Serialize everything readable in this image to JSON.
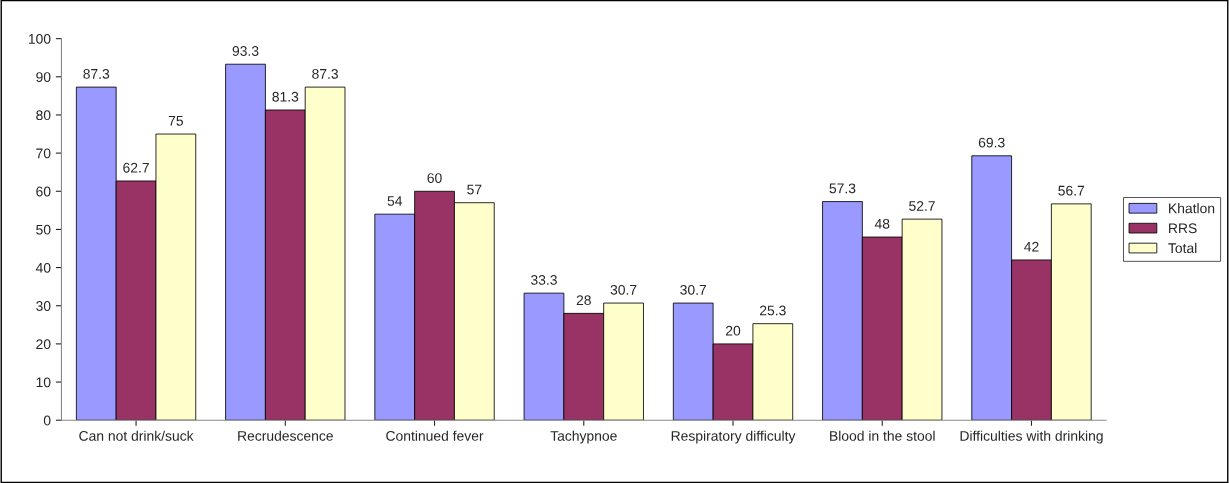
{
  "chart_data": {
    "type": "bar",
    "categories": [
      "Can not drink/suck",
      "Recrudescence",
      "Continued fever",
      "Tachypnoe",
      "Respiratory difficulty",
      "Blood in the stool",
      "Difficulties with drinking"
    ],
    "series": [
      {
        "name": "Khatlon",
        "color": "#9999ff",
        "values": [
          87.3,
          93.3,
          54,
          33.3,
          30.7,
          57.3,
          69.3
        ]
      },
      {
        "name": "RRS",
        "color": "#993366",
        "values": [
          62.7,
          81.3,
          60,
          28,
          20,
          48,
          42
        ]
      },
      {
        "name": "Total",
        "color": "#ffffcc",
        "values": [
          75,
          87.3,
          57,
          30.7,
          25.3,
          52.7,
          56.7
        ]
      }
    ],
    "ylim": [
      0,
      100
    ],
    "yticks": [
      0,
      10,
      20,
      30,
      40,
      50,
      60,
      70,
      80,
      90,
      100
    ],
    "data_labels": true,
    "grid": false,
    "legend": "right"
  }
}
